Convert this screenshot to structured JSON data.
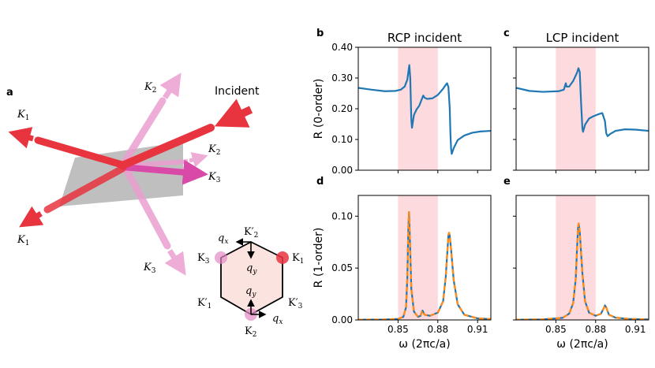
{
  "panel_a": {
    "panel_letter": "a",
    "incident_label": "Incident",
    "beam_labels": {
      "k1_top_k": "K",
      "k1_top_sub": "1",
      "k2_top_k": "K",
      "k2_top_sub": "2",
      "k2_small_k": "K",
      "k2_small_sub": "2",
      "k3_right_k": "K",
      "k3_right_sub": "3",
      "k1_bottom_k": "K",
      "k1_bottom_sub": "1",
      "k3_bottom_k": "K",
      "k3_bottom_sub": "3"
    },
    "hexagon": {
      "k2_prime_top": "K′",
      "k2_prime_top_sub": "2",
      "k1_right": "K",
      "k1_right_sub": "1",
      "k3_left": "K",
      "k3_left_sub": "3",
      "k1_prime_left": "K′",
      "k1_prime_left_sub": "1",
      "k3_prime_right": "K′",
      "k3_prime_right_sub": "3",
      "k2_bottom": "K",
      "k2_bottom_sub": "2",
      "qx_top": "q",
      "qx_top_sub": "x",
      "qy_top": "q",
      "qy_top_sub": "y",
      "qy_bottom": "q",
      "qy_bottom_sub": "y",
      "qx_bottom": "q",
      "qx_bottom_sub": "x"
    },
    "colors": {
      "red": "#e8343f",
      "pink": "#e38ac4",
      "magenta": "#d94aa8",
      "gray": "#a9a9a9",
      "hex_fill": "#fbe3e0"
    }
  },
  "chart_data": [
    {
      "id": "b",
      "type": "line",
      "panel_letter": "b",
      "title": "RCP incident",
      "ylabel": "R (0-order)",
      "xlabel": "",
      "xlim": [
        0.82,
        0.92
      ],
      "ylim": [
        0.0,
        0.4
      ],
      "yticks": [
        "0.00",
        "0.10",
        "0.20",
        "0.30",
        "0.40"
      ],
      "xticks": [],
      "shaded_region": [
        0.85,
        0.88
      ],
      "series": [
        {
          "color": "#1f77b4",
          "dashed": false,
          "points": [
            [
              0.82,
              0.268
            ],
            [
              0.83,
              0.262
            ],
            [
              0.84,
              0.257
            ],
            [
              0.848,
              0.258
            ],
            [
              0.852,
              0.262
            ],
            [
              0.855,
              0.272
            ],
            [
              0.857,
              0.295
            ],
            [
              0.8585,
              0.342
            ],
            [
              0.8592,
              0.3
            ],
            [
              0.86,
              0.165
            ],
            [
              0.8605,
              0.138
            ],
            [
              0.862,
              0.18
            ],
            [
              0.864,
              0.198
            ],
            [
              0.866,
              0.21
            ],
            [
              0.868,
              0.232
            ],
            [
              0.869,
              0.243
            ],
            [
              0.87,
              0.236
            ],
            [
              0.872,
              0.232
            ],
            [
              0.876,
              0.234
            ],
            [
              0.88,
              0.245
            ],
            [
              0.884,
              0.265
            ],
            [
              0.886,
              0.278
            ],
            [
              0.887,
              0.283
            ],
            [
              0.888,
              0.27
            ],
            [
              0.889,
              0.2
            ],
            [
              0.8895,
              0.12
            ],
            [
              0.89,
              0.07
            ],
            [
              0.8905,
              0.053
            ],
            [
              0.892,
              0.072
            ],
            [
              0.895,
              0.098
            ],
            [
              0.9,
              0.113
            ],
            [
              0.906,
              0.122
            ],
            [
              0.912,
              0.126
            ],
            [
              0.92,
              0.128
            ]
          ]
        }
      ]
    },
    {
      "id": "c",
      "type": "line",
      "panel_letter": "c",
      "title": "LCP incident",
      "ylabel": "",
      "xlabel": "",
      "xlim": [
        0.82,
        0.92
      ],
      "ylim": [
        0.0,
        0.4
      ],
      "yticks": [],
      "xticks": [],
      "shaded_region": [
        0.85,
        0.88
      ],
      "series": [
        {
          "color": "#1f77b4",
          "dashed": false,
          "points": [
            [
              0.82,
              0.268
            ],
            [
              0.83,
              0.258
            ],
            [
              0.84,
              0.255
            ],
            [
              0.852,
              0.257
            ],
            [
              0.856,
              0.262
            ],
            [
              0.8575,
              0.283
            ],
            [
              0.858,
              0.272
            ],
            [
              0.86,
              0.272
            ],
            [
              0.863,
              0.29
            ],
            [
              0.866,
              0.318
            ],
            [
              0.867,
              0.332
            ],
            [
              0.868,
              0.32
            ],
            [
              0.869,
              0.22
            ],
            [
              0.87,
              0.135
            ],
            [
              0.8705,
              0.125
            ],
            [
              0.872,
              0.148
            ],
            [
              0.875,
              0.168
            ],
            [
              0.878,
              0.175
            ],
            [
              0.882,
              0.182
            ],
            [
              0.885,
              0.186
            ],
            [
              0.887,
              0.16
            ],
            [
              0.888,
              0.12
            ],
            [
              0.889,
              0.111
            ],
            [
              0.891,
              0.118
            ],
            [
              0.895,
              0.128
            ],
            [
              0.902,
              0.133
            ],
            [
              0.91,
              0.132
            ],
            [
              0.92,
              0.128
            ]
          ]
        }
      ]
    },
    {
      "id": "d",
      "type": "line",
      "panel_letter": "d",
      "title": "",
      "ylabel": "R (1-order)",
      "xlabel": "ω (2πc/a)",
      "xlim": [
        0.82,
        0.92
      ],
      "ylim": [
        0.0,
        0.12
      ],
      "yticks": [
        "0.00",
        "0.05",
        "0.10"
      ],
      "xticks": [
        "0.85",
        "0.88",
        "0.91"
      ],
      "shaded_region": [
        0.85,
        0.88
      ],
      "series": [
        {
          "color": "#1f77b4",
          "dashed": false,
          "points": [
            [
              0.82,
              0.0002
            ],
            [
              0.84,
              0.0004
            ],
            [
              0.85,
              0.001
            ],
            [
              0.854,
              0.003
            ],
            [
              0.856,
              0.012
            ],
            [
              0.857,
              0.04
            ],
            [
              0.8578,
              0.09
            ],
            [
              0.8583,
              0.104
            ],
            [
              0.859,
              0.075
            ],
            [
              0.86,
              0.03
            ],
            [
              0.862,
              0.008
            ],
            [
              0.865,
              0.003
            ],
            [
              0.867,
              0.004
            ],
            [
              0.868,
              0.008
            ],
            [
              0.8685,
              0.009
            ],
            [
              0.87,
              0.005
            ],
            [
              0.874,
              0.004
            ],
            [
              0.88,
              0.007
            ],
            [
              0.884,
              0.018
            ],
            [
              0.886,
              0.042
            ],
            [
              0.8875,
              0.072
            ],
            [
              0.888,
              0.082
            ],
            [
              0.8885,
              0.084
            ],
            [
              0.889,
              0.081
            ],
            [
              0.89,
              0.068
            ],
            [
              0.892,
              0.038
            ],
            [
              0.895,
              0.015
            ],
            [
              0.9,
              0.005
            ],
            [
              0.91,
              0.0015
            ],
            [
              0.92,
              0.0008
            ]
          ]
        },
        {
          "color": "#ff8c1a",
          "dashed": true,
          "points": [
            [
              0.82,
              0.0002
            ],
            [
              0.84,
              0.0004
            ],
            [
              0.85,
              0.001
            ],
            [
              0.854,
              0.003
            ],
            [
              0.856,
              0.012
            ],
            [
              0.857,
              0.04
            ],
            [
              0.8578,
              0.09
            ],
            [
              0.8583,
              0.104
            ],
            [
              0.859,
              0.075
            ],
            [
              0.86,
              0.03
            ],
            [
              0.862,
              0.008
            ],
            [
              0.865,
              0.003
            ],
            [
              0.867,
              0.004
            ],
            [
              0.868,
              0.008
            ],
            [
              0.8685,
              0.009
            ],
            [
              0.87,
              0.005
            ],
            [
              0.874,
              0.004
            ],
            [
              0.88,
              0.007
            ],
            [
              0.884,
              0.018
            ],
            [
              0.886,
              0.042
            ],
            [
              0.8875,
              0.072
            ],
            [
              0.888,
              0.082
            ],
            [
              0.8885,
              0.084
            ],
            [
              0.889,
              0.081
            ],
            [
              0.89,
              0.068
            ],
            [
              0.892,
              0.038
            ],
            [
              0.895,
              0.015
            ],
            [
              0.9,
              0.005
            ],
            [
              0.91,
              0.0015
            ],
            [
              0.92,
              0.0008
            ]
          ]
        }
      ]
    },
    {
      "id": "e",
      "type": "line",
      "panel_letter": "e",
      "title": "",
      "ylabel": "",
      "xlabel": "ω (2πc/a)",
      "xlim": [
        0.82,
        0.92
      ],
      "ylim": [
        0.0,
        0.12
      ],
      "yticks": [],
      "xticks": [
        "0.85",
        "0.88",
        "0.91"
      ],
      "shaded_region": [
        0.85,
        0.88
      ],
      "series": [
        {
          "color": "#1f77b4",
          "dashed": false,
          "points": [
            [
              0.82,
              0.0002
            ],
            [
              0.84,
              0.0005
            ],
            [
              0.855,
              0.002
            ],
            [
              0.86,
              0.006
            ],
            [
              0.863,
              0.016
            ],
            [
              0.865,
              0.04
            ],
            [
              0.866,
              0.07
            ],
            [
              0.8668,
              0.09
            ],
            [
              0.8672,
              0.093
            ],
            [
              0.868,
              0.085
            ],
            [
              0.87,
              0.045
            ],
            [
              0.872,
              0.018
            ],
            [
              0.875,
              0.007
            ],
            [
              0.88,
              0.004
            ],
            [
              0.884,
              0.006
            ],
            [
              0.886,
              0.011
            ],
            [
              0.887,
              0.014
            ],
            [
              0.888,
              0.012
            ],
            [
              0.89,
              0.005
            ],
            [
              0.895,
              0.0022
            ],
            [
              0.905,
              0.001
            ],
            [
              0.92,
              0.0005
            ]
          ]
        },
        {
          "color": "#ff8c1a",
          "dashed": true,
          "points": [
            [
              0.82,
              0.0002
            ],
            [
              0.84,
              0.0005
            ],
            [
              0.855,
              0.002
            ],
            [
              0.86,
              0.006
            ],
            [
              0.863,
              0.016
            ],
            [
              0.865,
              0.04
            ],
            [
              0.866,
              0.07
            ],
            [
              0.8668,
              0.09
            ],
            [
              0.8672,
              0.093
            ],
            [
              0.868,
              0.085
            ],
            [
              0.87,
              0.045
            ],
            [
              0.872,
              0.018
            ],
            [
              0.875,
              0.007
            ],
            [
              0.88,
              0.004
            ],
            [
              0.884,
              0.006
            ],
            [
              0.886,
              0.011
            ],
            [
              0.887,
              0.014
            ],
            [
              0.888,
              0.012
            ],
            [
              0.89,
              0.005
            ],
            [
              0.895,
              0.0022
            ],
            [
              0.905,
              0.001
            ],
            [
              0.92,
              0.0005
            ]
          ]
        }
      ]
    }
  ]
}
